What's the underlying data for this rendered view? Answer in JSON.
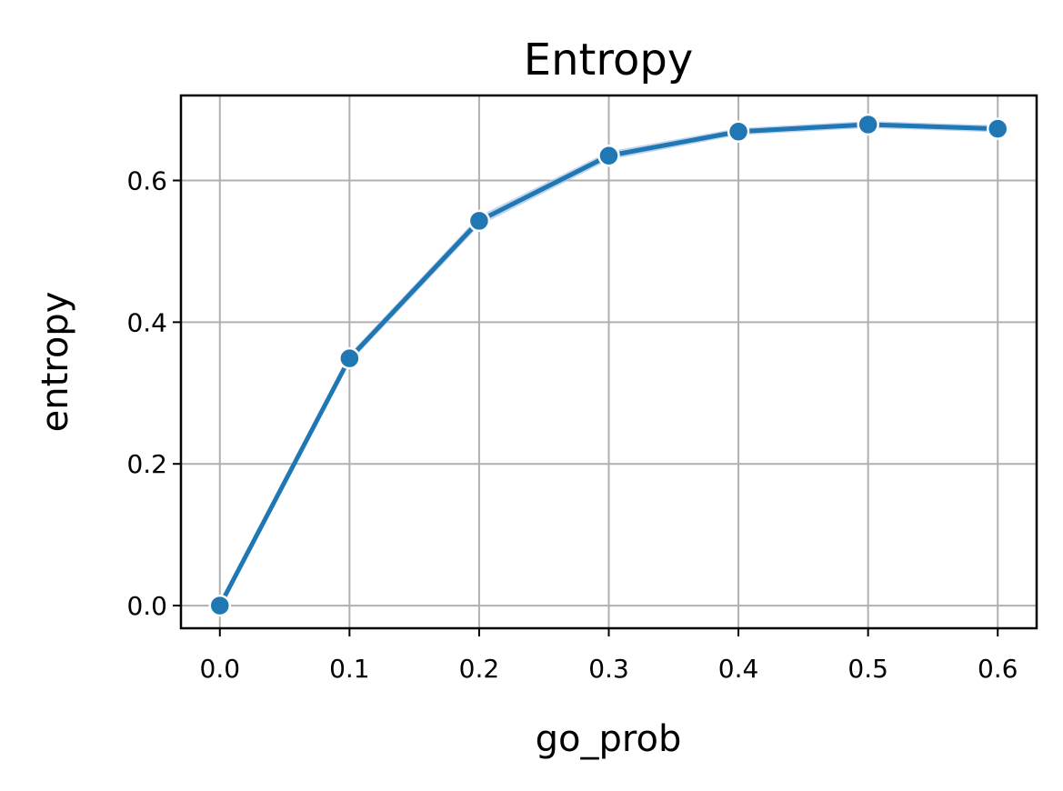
{
  "chart_data": {
    "type": "line",
    "title": "Entropy",
    "xlabel": "go_prob",
    "ylabel": "entropy",
    "x": [
      0.0,
      0.1,
      0.2,
      0.3,
      0.4,
      0.5,
      0.6
    ],
    "series": [
      {
        "values": [
          0.0,
          0.349,
          0.543,
          0.635,
          0.669,
          0.679,
          0.673
        ],
        "ci_lower": [
          0.0,
          0.343,
          0.536,
          0.629,
          0.664,
          0.674,
          0.668
        ],
        "ci_upper": [
          0.0,
          0.355,
          0.55,
          0.641,
          0.674,
          0.684,
          0.678
        ],
        "color": "#1f77b4",
        "band_color": "#aec7e8",
        "marker": "circle"
      }
    ],
    "xticks": [
      "0.0",
      "0.1",
      "0.2",
      "0.3",
      "0.4",
      "0.5",
      "0.6"
    ],
    "yticks": [
      "0.0",
      "0.2",
      "0.4",
      "0.6"
    ],
    "xlim": [
      -0.03,
      0.63
    ],
    "ylim": [
      -0.032,
      0.72
    ],
    "grid": true
  }
}
